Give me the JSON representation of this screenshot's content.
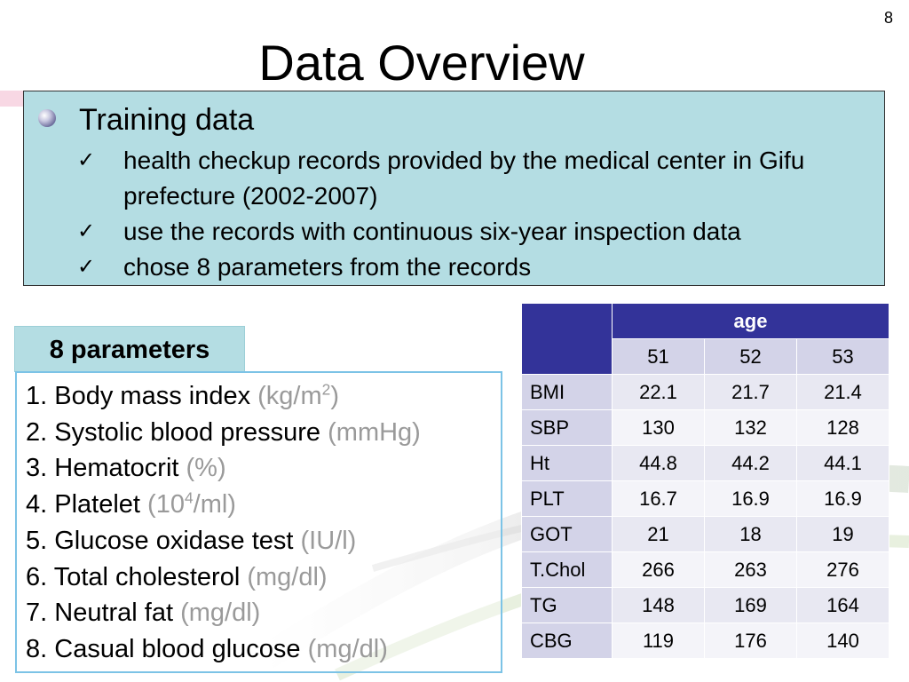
{
  "page_number": "8",
  "title": "Data Overview",
  "training": {
    "heading": "Training data",
    "items": [
      "health checkup records provided by the medical center in Gifu prefecture (2002-2007)",
      "use the records with continuous six-year inspection data",
      "chose 8 parameters from the records"
    ]
  },
  "parameters": {
    "label": "8 parameters",
    "items": [
      {
        "num": "1.",
        "name": "Body mass index",
        "unit_pre": "(kg/m",
        "unit_sup": "2",
        "unit_post": ")"
      },
      {
        "num": "2.",
        "name": "Systolic blood pressure",
        "unit_pre": "(mmHg)",
        "unit_sup": "",
        "unit_post": ""
      },
      {
        "num": "3.",
        "name": "Hematocrit",
        "unit_pre": "(%)",
        "unit_sup": "",
        "unit_post": ""
      },
      {
        "num": "4.",
        "name": "Platelet",
        "unit_pre": "(10",
        "unit_sup": "4",
        "unit_post": "/ml)"
      },
      {
        "num": "5.",
        "name": "Glucose oxidase test",
        "unit_pre": "(IU/l)",
        "unit_sup": "",
        "unit_post": ""
      },
      {
        "num": "6.",
        "name": "Total cholesterol",
        "unit_pre": "(mg/dl)",
        "unit_sup": "",
        "unit_post": ""
      },
      {
        "num": "7.",
        "name": "Neutral fat",
        "unit_pre": "(mg/dl)",
        "unit_sup": "",
        "unit_post": ""
      },
      {
        "num": "8.",
        "name": "Casual blood glucose",
        "unit_pre": "(mg/dl)",
        "unit_sup": "",
        "unit_post": ""
      }
    ]
  },
  "table": {
    "group_header": "age",
    "columns": [
      "51",
      "52",
      "53"
    ],
    "rows": [
      {
        "label": "BMI",
        "values": [
          "22.1",
          "21.7",
          "21.4"
        ]
      },
      {
        "label": "SBP",
        "values": [
          "130",
          "132",
          "128"
        ]
      },
      {
        "label": "Ht",
        "values": [
          "44.8",
          "44.2",
          "44.1"
        ]
      },
      {
        "label": "PLT",
        "values": [
          "16.7",
          "16.9",
          "16.9"
        ]
      },
      {
        "label": "GOT",
        "values": [
          "21",
          "18",
          "19"
        ]
      },
      {
        "label": "T.Chol",
        "values": [
          "266",
          "263",
          "276"
        ]
      },
      {
        "label": "TG",
        "values": [
          "148",
          "169",
          "164"
        ]
      },
      {
        "label": "CBG",
        "values": [
          "119",
          "176",
          "140"
        ]
      }
    ]
  },
  "colors": {
    "box_fill": "#b4dde3",
    "table_header": "#333399",
    "params_border": "#7cc3e6",
    "unit_text": "#9a9a9a"
  }
}
